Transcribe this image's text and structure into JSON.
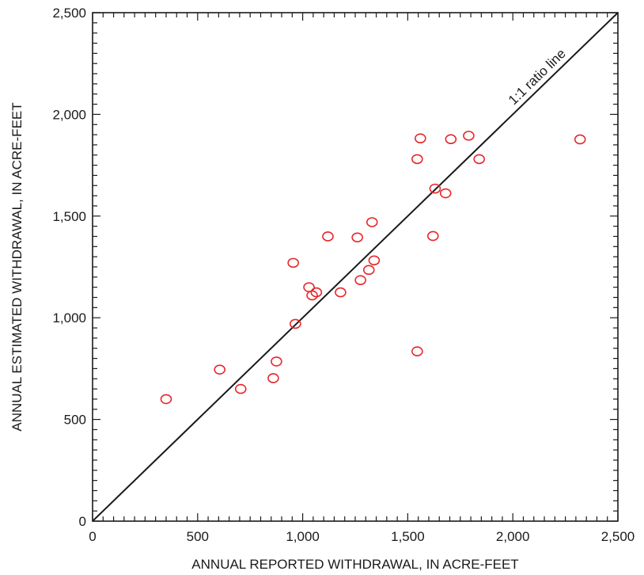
{
  "chart_data": {
    "type": "scatter",
    "xlabel": "ANNUAL REPORTED WITHDRAWAL, IN ACRE-FEET",
    "ylabel": "ANNUAL ESTIMATED WITHDRAWAL, IN ACRE-FEET",
    "xlim": [
      0,
      2500
    ],
    "ylim": [
      0,
      2500
    ],
    "x_ticks": [
      "0",
      "500",
      "1,000",
      "1,500",
      "2,000",
      "2,500"
    ],
    "y_ticks": [
      "0",
      "500",
      "1,000",
      "1,500",
      "2,000",
      "2,500"
    ],
    "grid": false,
    "marker": "open-circle",
    "marker_color": "#e8262b",
    "reference_line": {
      "label": "1:1 ratio line",
      "from": [
        0,
        0
      ],
      "to": [
        2500,
        2500
      ]
    },
    "points": [
      {
        "x": 350,
        "y": 600
      },
      {
        "x": 605,
        "y": 745
      },
      {
        "x": 705,
        "y": 650
      },
      {
        "x": 860,
        "y": 703
      },
      {
        "x": 875,
        "y": 785
      },
      {
        "x": 955,
        "y": 1270
      },
      {
        "x": 965,
        "y": 970
      },
      {
        "x": 1030,
        "y": 1150
      },
      {
        "x": 1045,
        "y": 1110
      },
      {
        "x": 1065,
        "y": 1125
      },
      {
        "x": 1120,
        "y": 1400
      },
      {
        "x": 1180,
        "y": 1125
      },
      {
        "x": 1260,
        "y": 1395
      },
      {
        "x": 1275,
        "y": 1185
      },
      {
        "x": 1315,
        "y": 1235
      },
      {
        "x": 1330,
        "y": 1470
      },
      {
        "x": 1340,
        "y": 1282
      },
      {
        "x": 1545,
        "y": 835
      },
      {
        "x": 1545,
        "y": 1780
      },
      {
        "x": 1560,
        "y": 1882
      },
      {
        "x": 1620,
        "y": 1402
      },
      {
        "x": 1630,
        "y": 1635
      },
      {
        "x": 1680,
        "y": 1612
      },
      {
        "x": 1705,
        "y": 1878
      },
      {
        "x": 1790,
        "y": 1895
      },
      {
        "x": 1840,
        "y": 1780
      },
      {
        "x": 2320,
        "y": 1877
      }
    ]
  }
}
